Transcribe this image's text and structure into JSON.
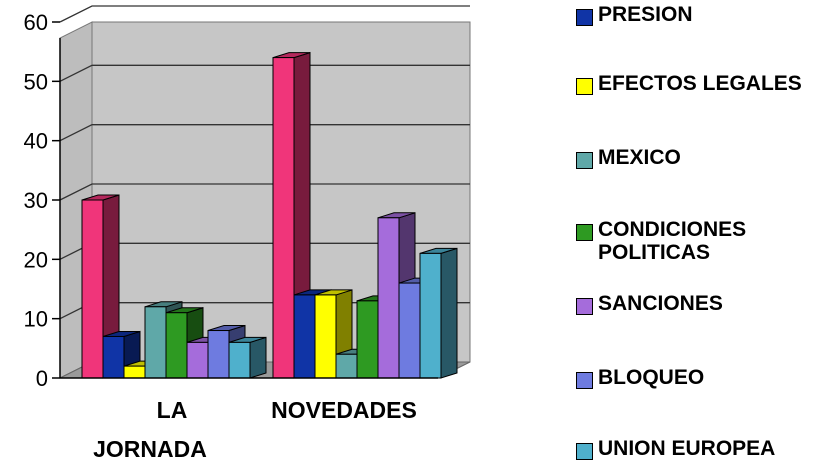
{
  "chart_data": {
    "type": "bar",
    "title": "",
    "xlabel": "",
    "ylabel": "",
    "ylim": [
      0,
      60
    ],
    "yticks": [
      "0",
      "10",
      "20",
      "30",
      "40",
      "50",
      "60"
    ],
    "grid": true,
    "legend_position": "right",
    "categories": [
      {
        "line1": "LA",
        "line2": "JORNADA"
      },
      {
        "line1": "NOVEDADES",
        "line2": ""
      }
    ],
    "series": [
      {
        "name": "",
        "color": "#F0357A",
        "values": [
          30,
          54
        ]
      },
      {
        "name": "PRESION",
        "color": "#1034A6",
        "values": [
          7,
          14
        ]
      },
      {
        "name": "EFECTOS LEGALES",
        "color": "#FFFF00",
        "values": [
          2,
          14
        ]
      },
      {
        "name": "MEXICO",
        "color": "#5FA8A8",
        "values": [
          12,
          4
        ]
      },
      {
        "name": "CONDICIONES POLITICAS",
        "color": "#2E9A22",
        "values": [
          11,
          13
        ]
      },
      {
        "name": "SANCIONES",
        "color": "#A56CDB",
        "values": [
          6,
          27
        ]
      },
      {
        "name": "BLOQUEO",
        "color": "#6E7BE0",
        "values": [
          8,
          16
        ]
      },
      {
        "name": "UNION EUROPEA",
        "color": "#4FB0CC",
        "values": [
          6,
          21
        ]
      }
    ]
  }
}
